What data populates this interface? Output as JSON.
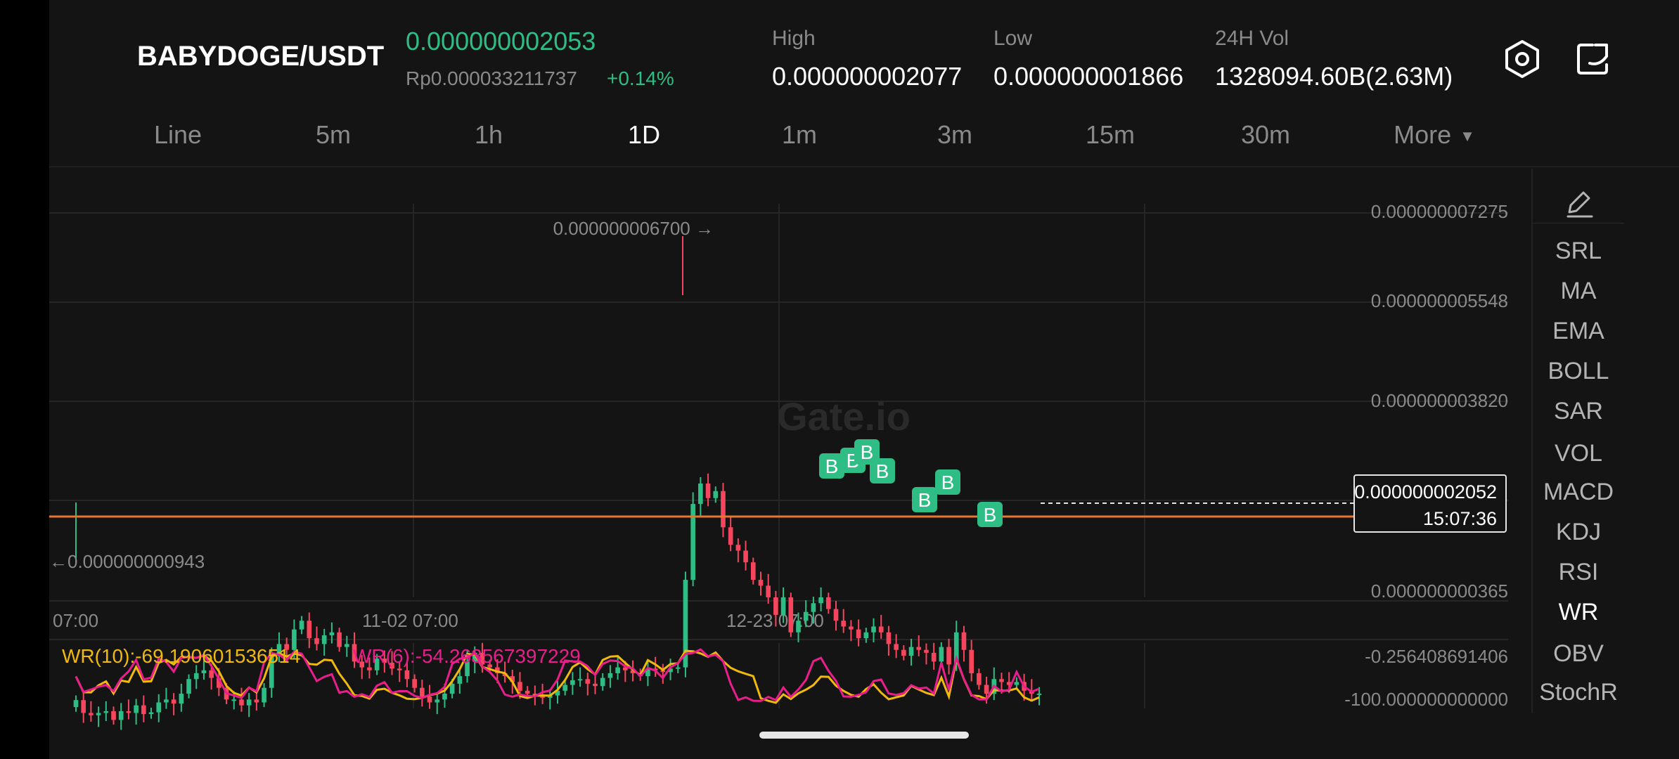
{
  "header": {
    "pair": "BABYDOGE/USDT",
    "last_price": "0.000000002053",
    "fiat_price": "Rp0.000033211737",
    "change": "+0.14%",
    "high_label": "High",
    "high_value": "0.000000002077",
    "low_label": "Low",
    "low_value": "0.000000001866",
    "vol_label": "24H Vol",
    "vol_value": "1328094.60B(2.63M)",
    "icons": [
      "settings-icon",
      "share-icon"
    ]
  },
  "tabs": [
    {
      "label": "Line"
    },
    {
      "label": "5m"
    },
    {
      "label": "1h"
    },
    {
      "label": "1D",
      "active": true
    },
    {
      "label": "1m"
    },
    {
      "label": "3m"
    },
    {
      "label": "15m"
    },
    {
      "label": "30m"
    },
    {
      "label": "More"
    }
  ],
  "indicators": {
    "items": [
      "SRL",
      "MA",
      "EMA",
      "BOLL",
      "SAR",
      "VOL",
      "MACD",
      "KDJ",
      "RSI",
      "WR",
      "OBV",
      "StochR"
    ],
    "active": "WR"
  },
  "colors": {
    "up": "#2ebd85",
    "down": "#f6465d",
    "last_price_line": "#e8772e",
    "wr10": "#f0b90b",
    "wr6": "#e91e8c",
    "grid": "#262626"
  },
  "chart_data": {
    "type": "candlestick",
    "y_axis_labels": [
      "0.000000007275",
      "0.000000005548",
      "0.000000003820",
      "0.000000000365"
    ],
    "x_axis_labels": [
      "07:00",
      "11-02 07:00",
      "12-23 07:00"
    ],
    "max_label": "0.000000006700",
    "min_label": "0.000000000943",
    "current_price": "0.000000002052",
    "countdown": "15:07:36",
    "buy_marker": "B",
    "buy_marker_count": 7,
    "watermark": "Gate.io",
    "close_series": [
      1.94,
      1.72,
      1.68,
      1.72,
      1.75,
      1.6,
      1.75,
      1.72,
      1.85,
      1.7,
      1.73,
      1.9,
      1.95,
      1.88,
      2.05,
      2.3,
      2.4,
      2.45,
      2.32,
      2.15,
      1.95,
      1.95,
      1.85,
      1.95,
      1.9,
      2.15,
      2.7,
      2.9,
      2.8,
      3.15,
      3.3,
      3.0,
      2.9,
      3.05,
      3.1,
      2.85,
      2.9,
      2.6,
      2.5,
      2.45,
      2.65,
      2.58,
      2.48,
      2.45,
      2.3,
      2.15,
      2.0,
      1.9,
      1.95,
      2.05,
      2.22,
      2.35,
      2.6,
      2.75,
      2.55,
      2.5,
      2.4,
      2.35,
      2.25,
      2.1,
      2.05,
      2.02,
      1.98,
      2.02,
      2.1,
      2.2,
      2.28,
      2.3,
      2.22,
      2.18,
      2.32,
      2.4,
      2.5,
      2.45,
      2.4,
      2.35,
      2.48,
      2.45,
      2.42,
      2.48,
      2.5,
      4.0,
      5.3,
      5.65,
      5.4,
      5.52,
      4.9,
      4.6,
      4.5,
      4.3,
      4.0,
      3.9,
      3.7,
      3.4,
      3.7,
      3.1,
      3.3,
      3.45,
      3.6,
      3.7,
      3.5,
      3.3,
      3.2,
      3.15,
      3.0,
      3.1,
      3.2,
      3.1,
      2.9,
      2.8,
      2.7,
      2.85,
      2.8,
      2.75,
      2.6,
      2.85,
      2.55,
      3.1,
      2.8,
      2.4,
      2.2,
      2.05,
      2.3,
      2.25,
      2.2,
      2.25,
      2.1,
      2.05,
      2.052
    ],
    "wr10_label": "WR(10):-69.190601536514",
    "wr6_label": "WR(6):-54.263567397229",
    "wr_axis_labels": [
      "-0.256408691406",
      "-100.000000000000"
    ]
  }
}
